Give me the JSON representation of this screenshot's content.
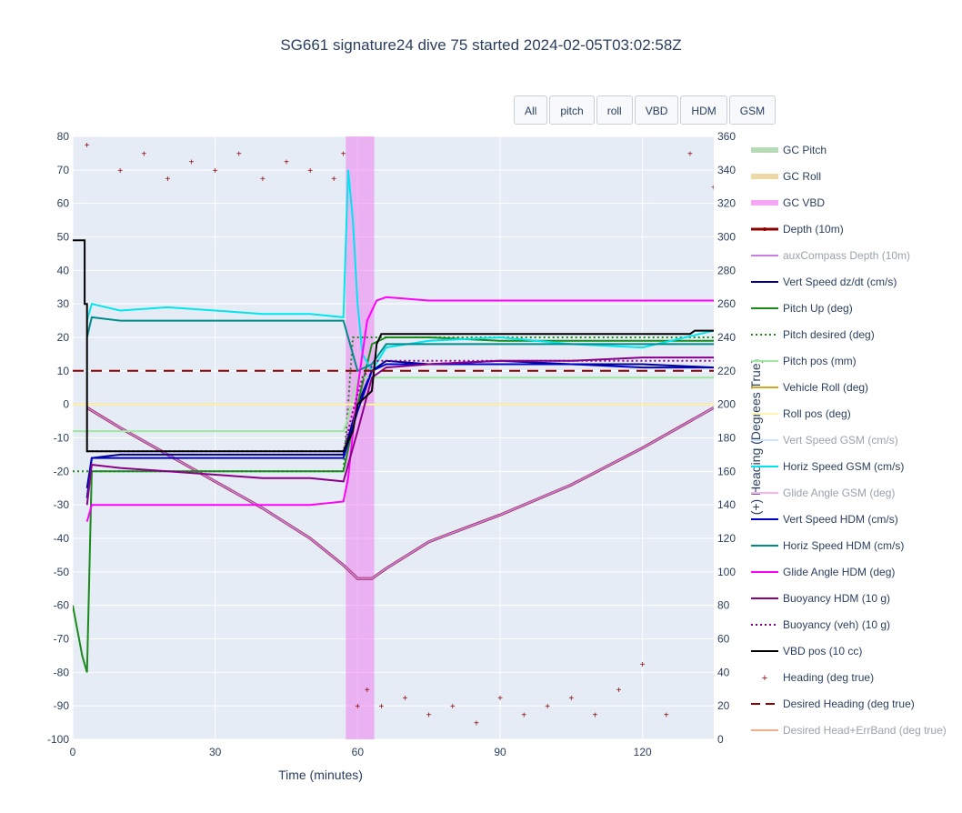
{
  "title": "SG661 signature24 dive 75 started 2024-02-05T03:02:58Z",
  "buttons": [
    "All",
    "pitch",
    "roll",
    "VBD",
    "HDM",
    "GSM"
  ],
  "chart_data": {
    "type": "line",
    "xlabel": "Time (minutes)",
    "ylabel": "",
    "y2label": "(+) Heading (Degrees True)",
    "xlim": [
      0,
      135
    ],
    "ylim": [
      -100,
      80
    ],
    "y2lim": [
      0,
      360
    ],
    "x_ticks": [
      0,
      30,
      60,
      90,
      120
    ],
    "y_ticks": [
      80,
      70,
      60,
      50,
      40,
      30,
      20,
      10,
      0,
      -10,
      -20,
      -30,
      -40,
      -50,
      -60,
      -70,
      -80,
      -90,
      -100
    ],
    "y2_ticks": [
      360,
      340,
      320,
      300,
      280,
      260,
      240,
      220,
      200,
      180,
      160,
      140,
      120,
      100,
      80,
      60,
      40,
      20,
      0
    ],
    "grid": true,
    "legend_position": "right",
    "gc_vbd_span": [
      57.5,
      63.5
    ],
    "series": [
      {
        "name": "GC Pitch",
        "color": "#b6dbb6",
        "style": "wide",
        "x": [],
        "y": []
      },
      {
        "name": "GC Roll",
        "color": "#eed9a4",
        "style": "wide",
        "x": [],
        "y": []
      },
      {
        "name": "GC VBD",
        "color": "#f5a6f5",
        "style": "wide",
        "x": [
          57.5,
          63.5
        ],
        "y": [
          80,
          80
        ]
      },
      {
        "name": "Depth (10m)",
        "color": "#8b0000",
        "style": "solid-thick",
        "x": [
          3,
          10,
          20,
          30,
          40,
          50,
          57,
          60,
          63,
          66,
          75,
          90,
          105,
          120,
          135
        ],
        "y": [
          -1,
          -7,
          -15,
          -23,
          -31,
          -40,
          -48,
          -52,
          -52,
          -49,
          -41,
          -33,
          -24,
          -13,
          -1
        ]
      },
      {
        "name": "auxCompass Depth (10m)",
        "color": "#c87de0",
        "style": "solid",
        "dim": true,
        "x": [
          3,
          10,
          20,
          30,
          40,
          50,
          57,
          60,
          63,
          66,
          75,
          90,
          105,
          120,
          135
        ],
        "y": [
          -1,
          -7,
          -15,
          -23,
          -31,
          -40,
          -48,
          -52,
          -52,
          -49,
          -41,
          -33,
          -24,
          -13,
          -1
        ]
      },
      {
        "name": "Vert Speed dz/dt (cm/s)",
        "color": "#00008b",
        "style": "solid",
        "x": [
          0,
          2,
          3,
          4,
          10,
          20,
          30,
          40,
          50,
          57,
          60,
          63,
          66,
          75,
          90,
          105,
          120,
          135
        ],
        "y": [
          null,
          null,
          -25,
          -16,
          -15,
          -15,
          -15,
          -15,
          -15,
          -15,
          0,
          10,
          13,
          12,
          13,
          12,
          12,
          11
        ]
      },
      {
        "name": "Pitch Up (deg)",
        "color": "#1a8a1a",
        "style": "solid",
        "x": [
          0,
          2,
          3,
          4,
          10,
          20,
          30,
          40,
          50,
          57,
          60,
          63,
          66,
          75,
          90,
          105,
          120,
          135
        ],
        "y": [
          -60,
          -75,
          -80,
          -20,
          -20,
          -20,
          -20,
          -20,
          -20,
          -20,
          0,
          18,
          20,
          20,
          19,
          19,
          19,
          19
        ]
      },
      {
        "name": "Pitch desired (deg)",
        "color": "#1a8a1a",
        "style": "dotted",
        "x": [
          0,
          57,
          59,
          60,
          135
        ],
        "y": [
          -20,
          -20,
          20,
          20,
          20
        ]
      },
      {
        "name": "Pitch pos (mm)",
        "color": "#9ee79e",
        "style": "solid",
        "x": [
          0,
          57,
          58,
          60,
          135
        ],
        "y": [
          -8,
          -8,
          -4,
          8,
          8
        ]
      },
      {
        "name": "Vehicle Roll (deg)",
        "color": "#daa520",
        "style": "solid",
        "x": [
          0,
          3,
          5,
          135
        ],
        "y": [
          0,
          0,
          0,
          0
        ]
      },
      {
        "name": "Roll pos (deg)",
        "color": "#fff5b0",
        "style": "solid",
        "x": [
          0,
          135
        ],
        "y": [
          0,
          0
        ]
      },
      {
        "name": "Vert Speed GSM (cm/s)",
        "color": "#cfe3ff",
        "style": "solid",
        "dim": true,
        "x": [],
        "y": []
      },
      {
        "name": "Horiz Speed GSM (cm/s)",
        "color": "#00e5ee",
        "style": "solid",
        "x": [
          3,
          4,
          10,
          20,
          30,
          40,
          50,
          57,
          58,
          59,
          60,
          61,
          63,
          66,
          75,
          90,
          105,
          120,
          135
        ],
        "y": [
          25,
          30,
          28,
          29,
          28,
          27,
          27,
          26,
          70,
          55,
          30,
          15,
          10,
          17,
          19,
          20,
          18,
          17,
          22
        ]
      },
      {
        "name": "Glide Angle GSM (deg)",
        "color": "#ffb0f0",
        "style": "solid",
        "dim": true,
        "x": [],
        "y": []
      },
      {
        "name": "Vert Speed HDM (cm/s)",
        "color": "#0000cd",
        "style": "solid",
        "x": [
          3,
          4,
          10,
          20,
          30,
          40,
          50,
          57,
          60,
          63,
          66,
          75,
          90,
          105,
          120,
          135
        ],
        "y": [
          -28,
          -16,
          -16,
          -16,
          -16,
          -16,
          -16,
          -16,
          -2,
          10,
          12,
          12,
          12,
          12,
          11,
          11
        ]
      },
      {
        "name": "Horiz Speed HDM (cm/s)",
        "color": "#008b8b",
        "style": "solid",
        "x": [
          3,
          4,
          10,
          20,
          30,
          40,
          50,
          57,
          60,
          63,
          66,
          75,
          90,
          105,
          120,
          135
        ],
        "y": [
          20,
          26,
          25,
          25,
          25,
          25,
          25,
          25,
          10,
          12,
          18,
          18,
          18,
          18,
          18,
          18
        ]
      },
      {
        "name": "Glide Angle HDM (deg)",
        "color": "#ff00ff",
        "style": "solid",
        "x": [
          3,
          4,
          10,
          20,
          30,
          40,
          50,
          57,
          58,
          60,
          62,
          64,
          66,
          75,
          90,
          105,
          120,
          135
        ],
        "y": [
          -35,
          -30,
          -30,
          -30,
          -30,
          -30,
          -30,
          -29,
          -22,
          5,
          25,
          31,
          32,
          31,
          31,
          31,
          31,
          31
        ]
      },
      {
        "name": "Buoyancy HDM (10 g)",
        "color": "#8b008b",
        "style": "solid",
        "x": [
          3,
          4,
          10,
          20,
          30,
          40,
          50,
          57,
          60,
          63,
          66,
          75,
          90,
          105,
          120,
          135
        ],
        "y": [
          -30,
          -18,
          -19,
          -20,
          -21,
          -22,
          -22,
          -23,
          -8,
          8,
          11,
          12,
          13,
          13,
          14,
          14
        ]
      },
      {
        "name": "Buoyancy (veh) (10 g)",
        "color": "#8b008b",
        "style": "dotted",
        "x": [
          3,
          4,
          10,
          57,
          59,
          61,
          64,
          135
        ],
        "y": [
          -14,
          -14,
          -14,
          -14,
          -2,
          8,
          13,
          13
        ]
      },
      {
        "name": "VBD pos (10 cc)",
        "color": "#000000",
        "style": "solid",
        "x": [
          0,
          2.5,
          2.5,
          3,
          3,
          57,
          59,
          60,
          63,
          64,
          65,
          100,
          101,
          130,
          131,
          135
        ],
        "y": [
          49,
          49,
          30,
          30,
          -14,
          -14,
          -8,
          0,
          4,
          18,
          21,
          21,
          21,
          21,
          22,
          22
        ]
      },
      {
        "name": "Heading (deg true)",
        "color": "#8b0000",
        "style": "markers",
        "axis": "y2",
        "x": [
          3,
          10,
          15,
          20,
          25,
          30,
          35,
          40,
          45,
          50,
          55,
          57,
          60,
          62,
          65,
          70,
          75,
          80,
          85,
          90,
          95,
          100,
          105,
          110,
          115,
          120,
          125,
          130,
          135
        ],
        "y": [
          355,
          340,
          350,
          335,
          345,
          340,
          350,
          335,
          345,
          340,
          335,
          350,
          20,
          30,
          20,
          25,
          15,
          20,
          10,
          25,
          15,
          20,
          25,
          15,
          30,
          45,
          15,
          350,
          330
        ]
      },
      {
        "name": "Desired Heading (deg true)",
        "color": "#8b0000",
        "style": "dashed",
        "axis": "y2",
        "x": [
          0,
          135
        ],
        "y": [
          220,
          220
        ]
      },
      {
        "name": "Desired Head+ErrBand (deg true)",
        "color": "#f0b08a",
        "style": "solid",
        "dim": true,
        "x": [],
        "y": []
      }
    ]
  }
}
